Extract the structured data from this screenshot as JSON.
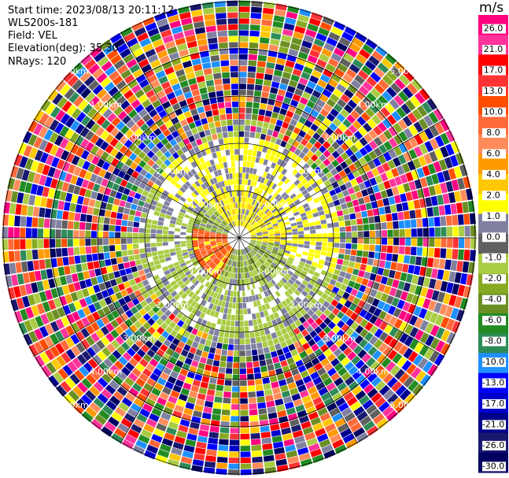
{
  "info": {
    "start_time": "Start time: 2023/08/13 20:11:12",
    "instrument": "WLS200s-181",
    "field": "Field: VEL",
    "elevation": "Elevation(deg): 35.30",
    "nrays": "NRays: 120"
  },
  "chart_data": {
    "type": "heatmap",
    "plot": "PPI",
    "units": "m/s",
    "range_ring_labels": [
      "1.00km",
      "2.00km",
      "3.00km",
      "4.00km",
      "5.00km"
    ],
    "n_rays": 120,
    "colorbar": {
      "unit_label": "m/s",
      "ticks": [
        "26.0",
        "21.0",
        "17.0",
        "13.0",
        "10.0",
        "8.0",
        "6.0",
        "4.0",
        "2.0",
        "1.0",
        "0.0",
        "-1.0",
        "-2.0",
        "-4.0",
        "-6.0",
        "-8.0",
        "-10.0",
        "-13.0",
        "-17.0",
        "-21.0",
        "-26.0",
        "-30.0"
      ],
      "colors": [
        "#ff0080",
        "#ff3399",
        "#ff0000",
        "#ff3333",
        "#ff4d00",
        "#ff6a3a",
        "#ff8c5a",
        "#ff9a00",
        "#ffc800",
        "#ffff00",
        "#8080a0",
        "#606060",
        "#aacc44",
        "#88aa22",
        "#6b8e23",
        "#228b22",
        "#2e8b57",
        "#1e90ff",
        "#0000ff",
        "#0000cd",
        "#00008b",
        "#191970",
        "#000060"
      ]
    }
  }
}
